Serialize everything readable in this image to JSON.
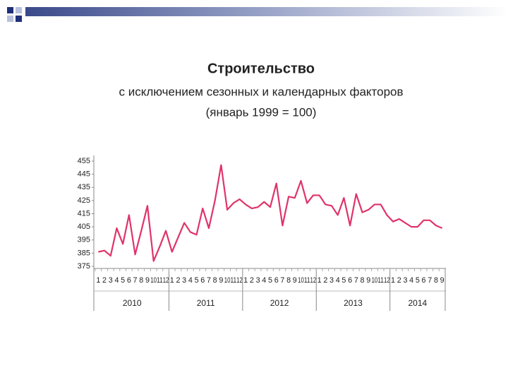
{
  "chart_data": {
    "type": "line",
    "title": "Строительство",
    "subtitle": "с исключением сезонных и календарных факторов",
    "note": "(январь 1999 = 100)",
    "categories": [
      "1",
      "2",
      "3",
      "4",
      "5",
      "6",
      "7",
      "8",
      "9",
      "10",
      "11",
      "12",
      "1",
      "2",
      "3",
      "4",
      "5",
      "6",
      "7",
      "8",
      "9",
      "10",
      "11",
      "12",
      "1",
      "2",
      "3",
      "4",
      "5",
      "6",
      "7",
      "8",
      "9",
      "10",
      "11",
      "12",
      "1",
      "2",
      "3",
      "4",
      "5",
      "6",
      "7",
      "8",
      "9",
      "10",
      "11",
      "12",
      "1",
      "2",
      "3",
      "4",
      "5",
      "6",
      "7",
      "8",
      "9"
    ],
    "groups": [
      "2010",
      "2011",
      "2012",
      "2013",
      "2014"
    ],
    "series": [
      {
        "color": "#e0336a",
        "values": [
          386,
          387,
          383,
          404,
          392,
          414,
          384,
          402,
          421,
          379,
          390,
          402,
          386,
          397,
          408,
          401,
          399,
          419,
          404,
          425,
          452,
          418,
          423,
          426,
          422,
          419,
          420,
          424,
          420,
          438,
          406,
          428,
          427,
          440,
          423,
          429,
          429,
          422,
          421,
          414,
          427,
          406,
          430,
          416,
          418,
          422,
          422,
          414,
          409,
          411,
          408,
          405,
          405,
          410,
          410,
          406,
          404
        ]
      }
    ],
    "ylim": [
      375,
      455
    ],
    "yticks": [
      375,
      385,
      395,
      405,
      415,
      425,
      435,
      445,
      455
    ],
    "grid": false
  }
}
